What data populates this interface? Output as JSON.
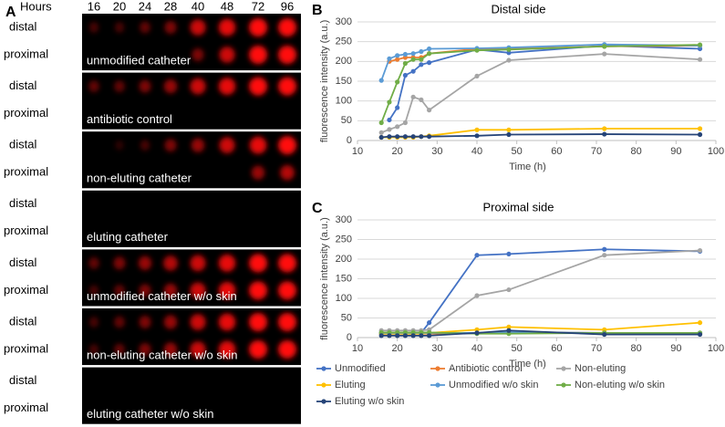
{
  "panel_a": {
    "label": "A",
    "header": "Hours",
    "hours": [
      16,
      20,
      24,
      28,
      40,
      48,
      72,
      96
    ],
    "rows": [
      {
        "distal": "distal",
        "proximal": "proximal",
        "caption": "unmodified catheter"
      },
      {
        "distal": "distal",
        "proximal": "proximal",
        "caption": "antibiotic control"
      },
      {
        "distal": "distal",
        "proximal": "proximal",
        "caption": "non-eluting catheter"
      },
      {
        "distal": "distal",
        "proximal": "proximal",
        "caption": "eluting catheter"
      },
      {
        "distal": "distal",
        "proximal": "proximal",
        "caption": "unmodified catheter w/o skin"
      },
      {
        "distal": "distal",
        "proximal": "proximal",
        "caption": "non-eluting catheter w/o skin"
      },
      {
        "distal": "distal",
        "proximal": "proximal",
        "caption": "eluting catheter w/o skin"
      }
    ]
  },
  "chart_data": [
    {
      "type": "line",
      "panel_label": "B",
      "title": "Distal side",
      "x_label": "Time (h)",
      "y_label": "fluorescence intensity (a.u.)",
      "x": [
        16,
        18,
        20,
        22,
        24,
        26,
        28,
        40,
        48,
        72,
        96
      ],
      "xlim": [
        10,
        100
      ],
      "xticks": [
        10,
        20,
        30,
        40,
        50,
        60,
        70,
        80,
        90,
        100
      ],
      "ylim": [
        0,
        300
      ],
      "yticks": [
        0,
        50,
        100,
        150,
        200,
        250,
        300
      ],
      "series": [
        {
          "color": "#4472c4",
          "values": [
            null,
            52,
            83,
            165,
            175,
            192,
            197,
            230,
            222,
            240,
            232
          ]
        },
        {
          "color": "#ed7d31",
          "values": [
            null,
            200,
            205,
            210,
            210,
            210,
            220,
            232,
            232,
            238,
            240
          ]
        },
        {
          "color": "#a5a5a5",
          "values": [
            20,
            28,
            35,
            45,
            110,
            103,
            77,
            163,
            203,
            219,
            205
          ]
        },
        {
          "color": "#ffc000",
          "values": [
            8,
            8,
            8,
            8,
            8,
            10,
            12,
            27,
            27,
            30,
            30
          ]
        },
        {
          "color": "#5b9bd5",
          "values": [
            152,
            207,
            215,
            218,
            220,
            225,
            232,
            233,
            235,
            243,
            240
          ]
        },
        {
          "color": "#70ad47",
          "values": [
            45,
            97,
            148,
            195,
            205,
            205,
            220,
            228,
            230,
            238,
            242
          ]
        },
        {
          "color": "#264478",
          "values": [
            8,
            10,
            10,
            10,
            10,
            10,
            10,
            12,
            15,
            16,
            15
          ]
        }
      ]
    },
    {
      "type": "line",
      "panel_label": "C",
      "title": "Proximal side",
      "x_label": "Time (h)",
      "y_label": "fluorescence intensity (a.u.)",
      "x": [
        16,
        18,
        20,
        22,
        24,
        26,
        28,
        40,
        48,
        72,
        96
      ],
      "xlim": [
        10,
        100
      ],
      "xticks": [
        10,
        20,
        30,
        40,
        50,
        60,
        70,
        80,
        90,
        100
      ],
      "ylim": [
        0,
        300
      ],
      "yticks": [
        0,
        50,
        100,
        150,
        200,
        250,
        300
      ],
      "series": [
        {
          "name": "Unmodified",
          "color": "#4472c4",
          "values": [
            10,
            10,
            10,
            10,
            10,
            12,
            38,
            210,
            213,
            225,
            220
          ]
        },
        {
          "name": "Antibiotic control",
          "color": "#ed7d31",
          "values": [
            10,
            10,
            10,
            10,
            10,
            10,
            10,
            12,
            14,
            12,
            10
          ]
        },
        {
          "name": "Non-eluting",
          "color": "#a5a5a5",
          "values": [
            18,
            18,
            18,
            18,
            18,
            18,
            20,
            107,
            122,
            210,
            222
          ]
        },
        {
          "name": "Eluting",
          "color": "#ffc000",
          "values": [
            10,
            10,
            10,
            10,
            10,
            10,
            12,
            20,
            27,
            20,
            38
          ]
        },
        {
          "name": "Unmodified w/o skin",
          "color": "#5b9bd5",
          "values": [
            12,
            12,
            12,
            12,
            12,
            12,
            12,
            12,
            14,
            12,
            12
          ]
        },
        {
          "name": "Non-eluting w/o skin",
          "color": "#70ad47",
          "values": [
            13,
            13,
            13,
            13,
            13,
            13,
            13,
            10,
            10,
            12,
            12
          ]
        },
        {
          "name": "Eluting w/o skin",
          "color": "#264478",
          "values": [
            5,
            5,
            5,
            5,
            5,
            5,
            5,
            12,
            18,
            8,
            8
          ]
        }
      ]
    }
  ]
}
